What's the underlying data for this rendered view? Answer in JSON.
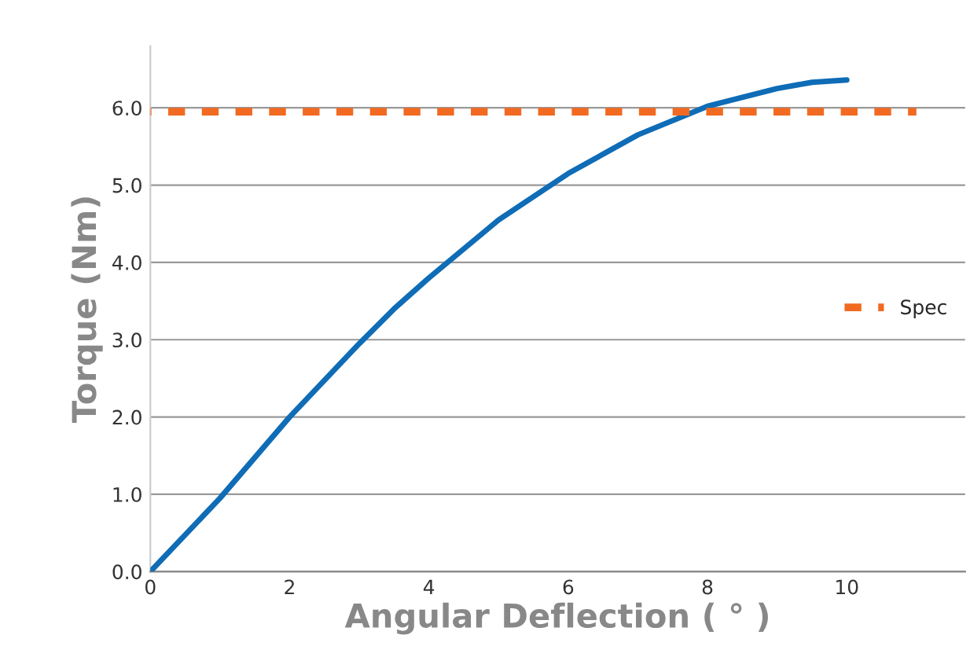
{
  "chart_data": {
    "type": "line",
    "xlabel": "Angular Deflection ( ° )",
    "ylabel": "Torque (Nm)",
    "xlim": [
      0,
      11.7
    ],
    "ylim": [
      0,
      6.8
    ],
    "xticks": [
      0,
      2,
      4,
      6,
      8,
      10
    ],
    "yticks": [
      {
        "value": 0,
        "label": "0.0"
      },
      {
        "value": 1,
        "label": "1.0"
      },
      {
        "value": 2,
        "label": "2.0"
      },
      {
        "value": 3,
        "label": "3.0"
      },
      {
        "value": 4,
        "label": "4.0"
      },
      {
        "value": 5,
        "label": "5.0"
      },
      {
        "value": 6,
        "label": "6.0"
      }
    ],
    "grid": "y",
    "legend": "center right",
    "series": [
      {
        "color": "#0f6cb6",
        "line_style": "solid",
        "x": [
          0,
          1,
          2,
          3,
          3.5,
          4,
          5,
          6,
          7,
          8,
          9,
          9.5,
          10
        ],
        "values": [
          0,
          0.95,
          2.0,
          2.95,
          3.4,
          3.8,
          4.55,
          5.15,
          5.65,
          6.02,
          6.25,
          6.33,
          6.36
        ]
      },
      {
        "name": "Spec",
        "color": "#f26a21",
        "line_style": "dashed",
        "x": [
          0,
          11
        ],
        "values": [
          5.95,
          5.95
        ]
      }
    ]
  }
}
